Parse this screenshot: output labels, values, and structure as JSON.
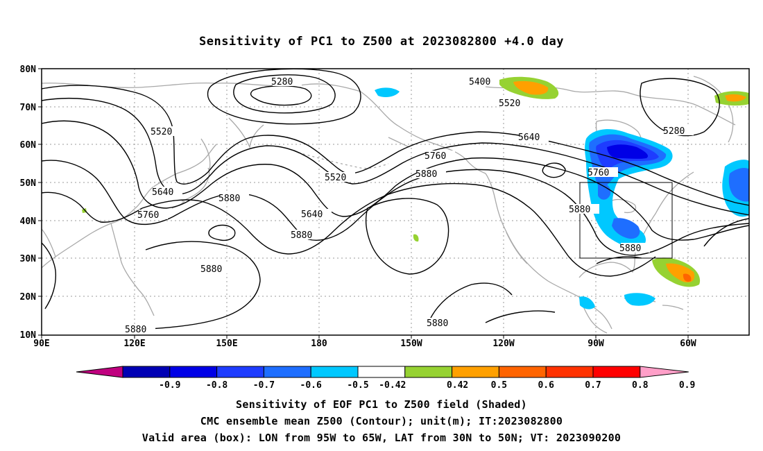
{
  "title": "Sensitivity of PC1 to Z500 at 2023082800 +4.0 day",
  "lat_labels": [
    "80N",
    "70N",
    "60N",
    "50N",
    "40N",
    "30N",
    "20N",
    "10N"
  ],
  "lon_labels": [
    "90E",
    "120E",
    "150E",
    "180",
    "150W",
    "120W",
    "90W",
    "60W"
  ],
  "contour_labels": [
    "5280",
    "5400",
    "5520",
    "5520",
    "5280",
    "5640",
    "5520",
    "5760",
    "5640",
    "5880",
    "5760",
    "5880",
    "5640",
    "5880",
    "5760",
    "5880",
    "5880",
    "5880",
    "5880",
    "5880"
  ],
  "colorbar": {
    "ticks": [
      "-0.9",
      "-0.8",
      "-0.7",
      "-0.6",
      "-0.5",
      "-0.42",
      "0.42",
      "0.5",
      "0.6",
      "0.7",
      "0.8",
      "0.9"
    ],
    "colors": [
      "#c0007f",
      "#0000b4",
      "#0000e6",
      "#1e3cff",
      "#1e6eff",
      "#00c8ff",
      "#ffffff",
      "#96d232",
      "#ffa000",
      "#ff6400",
      "#ff3200",
      "#ff0000",
      "#ff9fc8"
    ]
  },
  "captions": [
    "Sensitivity of EOF PC1 to Z500 field (Shaded)",
    "CMC ensemble mean Z500 (Contour); unit(m); IT:2023082800",
    "Valid area (box): LON from 95W to 65W, LAT from 30N to 50N; VT: 2023090200"
  ]
}
